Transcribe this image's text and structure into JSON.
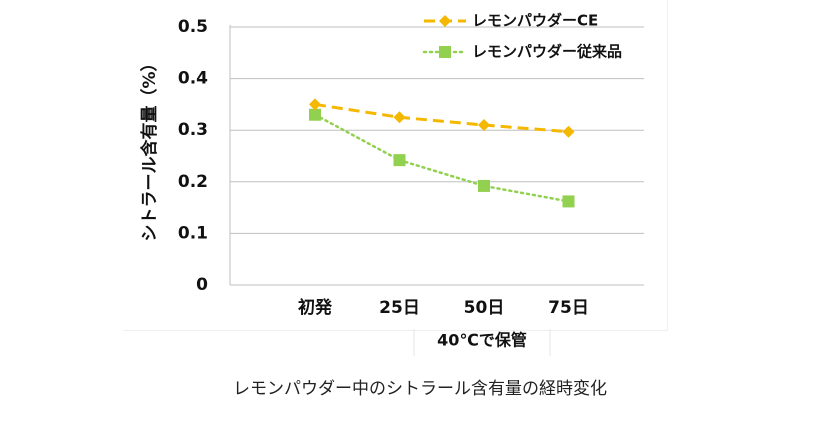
{
  "chart_data": {
    "type": "line",
    "ylabel": "シトラール含有量（%）",
    "categories": [
      "初発",
      "25日",
      "50日",
      "75日"
    ],
    "ylim": [
      0,
      0.5
    ],
    "yticks": [
      "0",
      "0.1",
      "0.2",
      "0.3",
      "0.4",
      "0.5"
    ],
    "x_sublabel": "40℃で保管",
    "legend_position": "top-right",
    "grid": true,
    "series": [
      {
        "name": "レモンパウダーCE",
        "values": [
          0.35,
          0.325,
          0.31,
          0.297
        ],
        "color": "#f5b800",
        "marker": "diamond",
        "line_style": "dashed"
      },
      {
        "name": "レモンパウダー従来品",
        "values": [
          0.33,
          0.242,
          0.192,
          0.162
        ],
        "color": "#92d050",
        "marker": "square",
        "line_style": "dotted"
      }
    ]
  },
  "caption": "レモンパウダー中のシトラール含有量の経時変化"
}
